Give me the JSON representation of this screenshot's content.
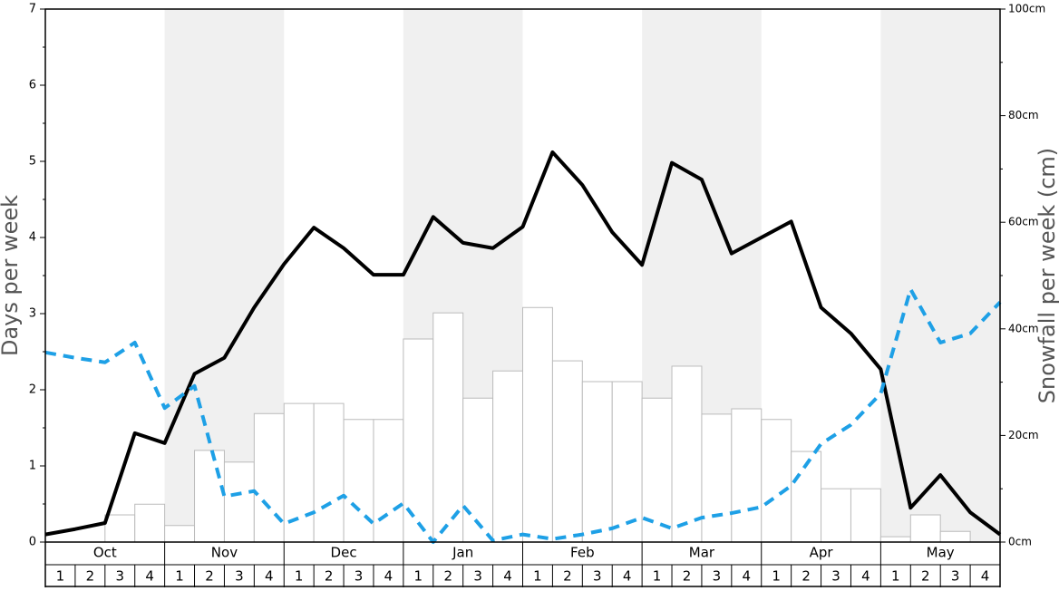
{
  "chart_data": {
    "type": "combo",
    "ylabel": "Days per week",
    "y2label": "Snowfall per week (cm)",
    "months": [
      "Oct",
      "Nov",
      "Dec",
      "Jan",
      "Feb",
      "Mar",
      "Apr",
      "May"
    ],
    "categories": [
      "1",
      "2",
      "3",
      "4",
      "1",
      "2",
      "3",
      "4",
      "1",
      "2",
      "3",
      "4",
      "1",
      "2",
      "3",
      "4",
      "1",
      "2",
      "3",
      "4",
      "1",
      "2",
      "3",
      "4",
      "1",
      "2",
      "3",
      "4",
      "1",
      "2",
      "3",
      "4"
    ],
    "band_color": "#f0f0f0",
    "xlim": [
      0,
      32
    ],
    "ylim": [
      0,
      7
    ],
    "yticks": [
      0,
      1,
      2,
      3,
      4,
      5,
      6,
      7
    ],
    "yminorticks": [
      0.5,
      1.5,
      2.5,
      3.5,
      4.5,
      5.5,
      6.5
    ],
    "y2lim": [
      0,
      100
    ],
    "y2ticks": [
      {
        "value": 0,
        "label": "0cm"
      },
      {
        "value": 20,
        "label": "20cm"
      },
      {
        "value": 40,
        "label": "40cm"
      },
      {
        "value": 60,
        "label": "60cm"
      },
      {
        "value": 80,
        "label": "80cm"
      },
      {
        "value": 100,
        "label": "100cm"
      }
    ],
    "y2minorticks": [
      10,
      30,
      50,
      70,
      90
    ],
    "series": [
      {
        "type": "bar",
        "axis": "y2",
        "color": "#ffffff",
        "edge": "#bbbbbb",
        "values": [
          0,
          0,
          5.1,
          7.1,
          3.1,
          17.2,
          15.0,
          24.1,
          26.0,
          26.0,
          23.0,
          23.0,
          38.1,
          43.0,
          27.0,
          32.1,
          44.0,
          34.0,
          30.1,
          30.1,
          27.0,
          33.0,
          24.0,
          25.0,
          23.0,
          17.0,
          10.0,
          10.0,
          1.0,
          5.1,
          2.0,
          0
        ]
      },
      {
        "type": "line",
        "axis": "y",
        "color": "#000000",
        "dashed": false,
        "x": [
          0,
          1,
          2,
          3,
          4,
          5,
          6,
          7,
          8,
          9,
          10,
          11,
          12,
          13,
          14,
          15,
          16,
          17,
          18,
          19,
          20,
          21,
          22,
          23,
          24,
          25,
          26,
          27,
          28,
          29,
          30,
          31,
          32
        ],
        "values": [
          0.1,
          0.17,
          0.25,
          1.43,
          1.3,
          2.21,
          2.42,
          3.08,
          3.65,
          4.13,
          3.86,
          3.51,
          3.51,
          4.27,
          3.93,
          3.86,
          4.14,
          5.12,
          4.69,
          4.07,
          3.64,
          4.98,
          4.76,
          3.79,
          4.0,
          4.21,
          3.08,
          2.74,
          2.27,
          0.45,
          0.88,
          0.39,
          0.1
        ]
      },
      {
        "type": "line",
        "axis": "y",
        "color": "#1ea0e6",
        "dashed": true,
        "x": [
          0,
          1,
          2,
          3,
          4,
          5,
          6,
          7,
          8,
          9,
          10,
          11,
          12,
          13,
          14,
          15,
          16,
          17,
          18,
          19,
          20,
          21,
          22,
          23,
          24,
          25,
          26,
          27,
          28,
          29,
          30,
          31,
          32
        ],
        "values": [
          2.49,
          2.42,
          2.36,
          2.62,
          1.76,
          2.05,
          0.6,
          0.67,
          0.24,
          0.39,
          0.61,
          0.24,
          0.51,
          0,
          0.48,
          0.02,
          0.1,
          0.04,
          0.1,
          0.18,
          0.32,
          0.18,
          0.32,
          0.38,
          0.46,
          0.74,
          1.29,
          1.54,
          1.95,
          3.32,
          2.62,
          2.74,
          3.15
        ]
      }
    ]
  }
}
